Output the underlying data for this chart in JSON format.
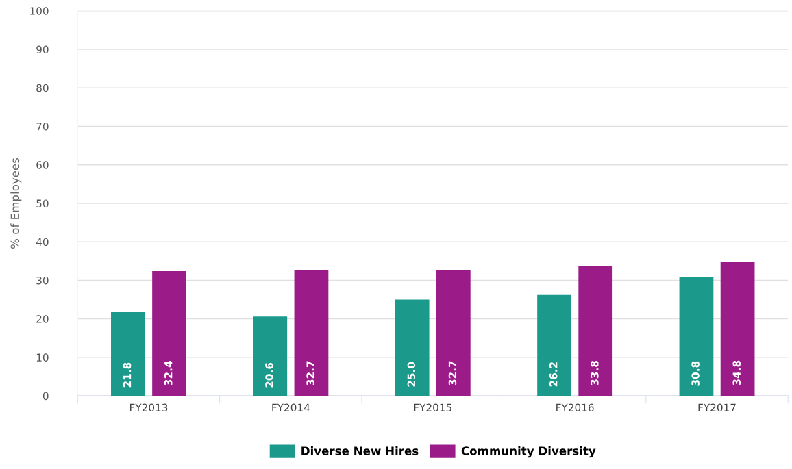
{
  "chart_data": {
    "type": "bar",
    "ylabel": "% of Employees",
    "categories": [
      "FY2013",
      "FY2014",
      "FY2015",
      "FY2016",
      "FY2017"
    ],
    "series": [
      {
        "name": "Diverse New Hires",
        "color": "#1b998b",
        "values": [
          21.8,
          20.6,
          25.0,
          26.2,
          30.8
        ],
        "value_labels": [
          "21.8",
          "20.6",
          "25.0",
          "26.2",
          "30.8"
        ]
      },
      {
        "name": "Community Diversity",
        "color": "#9b1b89",
        "values": [
          32.4,
          32.7,
          32.7,
          33.8,
          34.8
        ],
        "value_labels": [
          "32.4",
          "32.7",
          "32.7",
          "33.8",
          "34.8"
        ]
      }
    ],
    "ylim": [
      0,
      100
    ],
    "yticks": [
      0,
      10,
      20,
      30,
      40,
      50,
      60,
      70,
      80,
      90,
      100
    ],
    "grid": "y",
    "legend": "bottom"
  }
}
